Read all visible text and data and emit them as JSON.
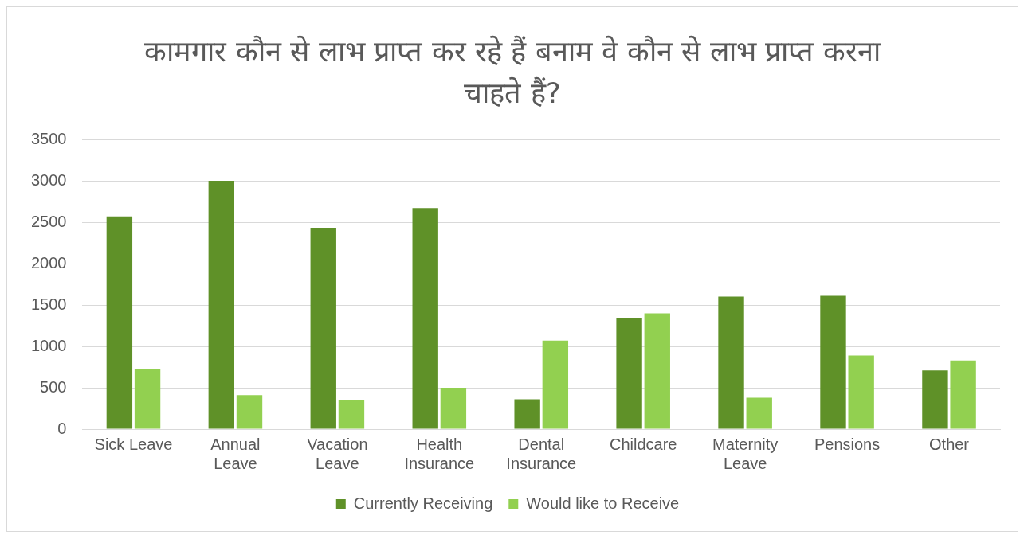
{
  "chart_data": {
    "type": "bar",
    "title": "कामगार कौन से लाभ प्राप्त कर रहे हैं बनाम वे कौन से लाभ प्राप्त करना चाहते हैं?",
    "categories": [
      "Sick Leave",
      "Annual Leave",
      "Vacation Leave",
      "Health Insurance",
      "Dental Insurance",
      "Childcare",
      "Maternity Leave",
      "Pensions",
      "Other"
    ],
    "series": [
      {
        "name": "Currently Receiving",
        "color": "#5f9128",
        "values": [
          2570,
          3000,
          2430,
          2670,
          360,
          1340,
          1600,
          1610,
          710
        ]
      },
      {
        "name": "Would like to Receive",
        "color": "#92d050",
        "values": [
          720,
          410,
          350,
          500,
          1070,
          1400,
          380,
          890,
          830
        ]
      }
    ],
    "ylim": [
      0,
      3500
    ],
    "yticks": [
      0,
      500,
      1000,
      1500,
      2000,
      2500,
      3000,
      3500
    ],
    "grid": "y",
    "legend": "bottom"
  }
}
